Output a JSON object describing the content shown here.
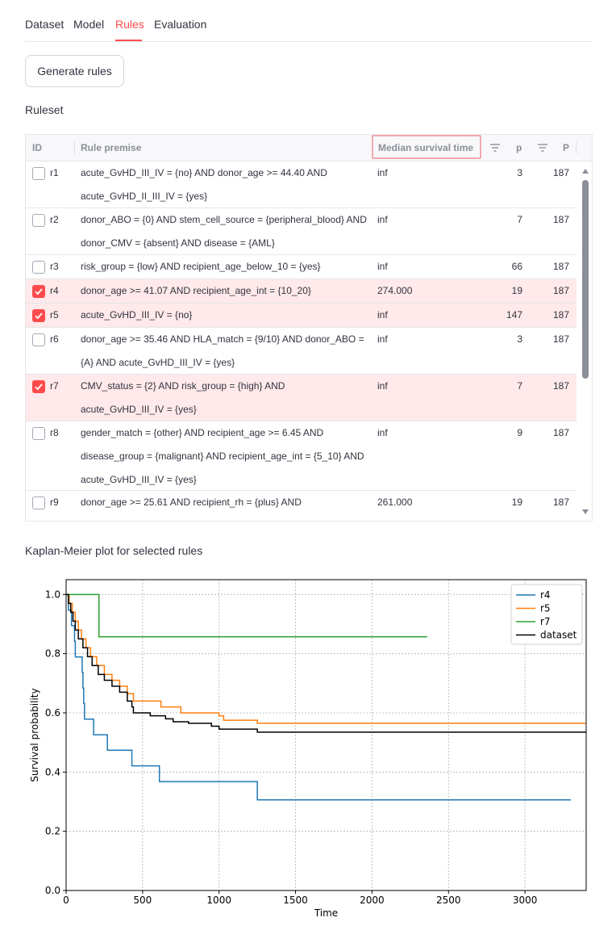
{
  "tabs": [
    "Dataset",
    "Model",
    "Rules",
    "Evaluation"
  ],
  "active_tab": "Rules",
  "buttons": {
    "generate": "Generate rules"
  },
  "ruleset": {
    "title": "Ruleset",
    "columns": {
      "id": "ID",
      "premise": "Rule premise",
      "median": "Median survival time",
      "p": "p",
      "P": "P"
    },
    "rows": [
      {
        "id": "r1",
        "premise": "acute_GvHD_III_IV = {no} AND donor_age >= 44.40 AND acute_GvHD_II_III_IV = {yes}",
        "median": "inf",
        "p": "3",
        "P": "187",
        "selected": false
      },
      {
        "id": "r2",
        "premise": "donor_ABO = {0} AND stem_cell_source = {peripheral_blood} AND donor_CMV = {absent} AND disease = {AML}",
        "median": "inf",
        "p": "7",
        "P": "187",
        "selected": false
      },
      {
        "id": "r3",
        "premise": "risk_group = {low} AND recipient_age_below_10 = {yes}",
        "median": "inf",
        "p": "66",
        "P": "187",
        "selected": false
      },
      {
        "id": "r4",
        "premise": "donor_age >= 41.07 AND recipient_age_int = {10_20}",
        "median": "274.000",
        "p": "19",
        "P": "187",
        "selected": true
      },
      {
        "id": "r5",
        "premise": "acute_GvHD_III_IV = {no}",
        "median": "inf",
        "p": "147",
        "P": "187",
        "selected": true
      },
      {
        "id": "r6",
        "premise": "donor_age >= 35.46 AND HLA_match = {9/10} AND donor_ABO = {A} AND acute_GvHD_III_IV = {yes}",
        "median": "inf",
        "p": "3",
        "P": "187",
        "selected": false
      },
      {
        "id": "r7",
        "premise": "CMV_status = {2} AND risk_group = {high} AND acute_GvHD_III_IV = {yes}",
        "median": "inf",
        "p": "7",
        "P": "187",
        "selected": true
      },
      {
        "id": "r8",
        "premise": "gender_match = {other} AND recipient_age >= 6.45 AND disease_group = {malignant} AND recipient_age_int = {5_10} AND acute_GvHD_III_IV = {yes}",
        "median": "inf",
        "p": "9",
        "P": "187",
        "selected": false
      },
      {
        "id": "r9",
        "premise": "donor_age >= 25.61 AND recipient_rh = {plus} AND",
        "median": "261.000",
        "p": "19",
        "P": "187",
        "selected": false
      }
    ]
  },
  "km_section": {
    "title": "Kaplan-Meier plot for selected rules"
  },
  "chart_data": {
    "type": "line",
    "step": true,
    "xlabel": "Time",
    "ylabel": "Survival probability",
    "xlim": [
      0,
      3400
    ],
    "ylim": [
      0,
      1.05
    ],
    "xticks": [
      0,
      500,
      1000,
      1500,
      2000,
      2500,
      3000
    ],
    "yticks": [
      0.0,
      0.2,
      0.4,
      0.6,
      0.8,
      1.0
    ],
    "grid": true,
    "legend": "top-right",
    "series": [
      {
        "name": "r4",
        "color": "#1f77b4",
        "points": [
          [
            0,
            1.0
          ],
          [
            15,
            0.947
          ],
          [
            35,
            0.895
          ],
          [
            55,
            0.842
          ],
          [
            60,
            0.789
          ],
          [
            105,
            0.737
          ],
          [
            110,
            0.684
          ],
          [
            115,
            0.632
          ],
          [
            120,
            0.579
          ],
          [
            180,
            0.526
          ],
          [
            270,
            0.474
          ],
          [
            430,
            0.421
          ],
          [
            610,
            0.368
          ],
          [
            1250,
            0.306
          ],
          [
            3300,
            0.306
          ]
        ]
      },
      {
        "name": "r5",
        "color": "#ff7f0e",
        "points": [
          [
            0,
            1.0
          ],
          [
            20,
            0.97
          ],
          [
            40,
            0.94
          ],
          [
            60,
            0.91
          ],
          [
            80,
            0.88
          ],
          [
            100,
            0.85
          ],
          [
            130,
            0.82
          ],
          [
            160,
            0.79
          ],
          [
            200,
            0.76
          ],
          [
            250,
            0.73
          ],
          [
            300,
            0.71
          ],
          [
            350,
            0.69
          ],
          [
            400,
            0.665
          ],
          [
            440,
            0.64
          ],
          [
            620,
            0.62
          ],
          [
            750,
            0.6
          ],
          [
            1000,
            0.59
          ],
          [
            1030,
            0.575
          ],
          [
            1250,
            0.565
          ],
          [
            3400,
            0.565
          ]
        ]
      },
      {
        "name": "r7",
        "color": "#2ca02c",
        "points": [
          [
            0,
            1.0
          ],
          [
            215,
            0.857
          ],
          [
            2360,
            0.857
          ]
        ]
      },
      {
        "name": "dataset",
        "color": "#000000",
        "points": [
          [
            0,
            1.0
          ],
          [
            15,
            0.97
          ],
          [
            30,
            0.94
          ],
          [
            45,
            0.91
          ],
          [
            60,
            0.88
          ],
          [
            80,
            0.85
          ],
          [
            110,
            0.82
          ],
          [
            140,
            0.79
          ],
          [
            170,
            0.76
          ],
          [
            210,
            0.73
          ],
          [
            250,
            0.71
          ],
          [
            300,
            0.69
          ],
          [
            350,
            0.67
          ],
          [
            400,
            0.64
          ],
          [
            430,
            0.62
          ],
          [
            440,
            0.6
          ],
          [
            550,
            0.59
          ],
          [
            650,
            0.58
          ],
          [
            700,
            0.57
          ],
          [
            800,
            0.565
          ],
          [
            950,
            0.555
          ],
          [
            1000,
            0.545
          ],
          [
            1250,
            0.535
          ],
          [
            3400,
            0.535
          ]
        ]
      }
    ]
  }
}
